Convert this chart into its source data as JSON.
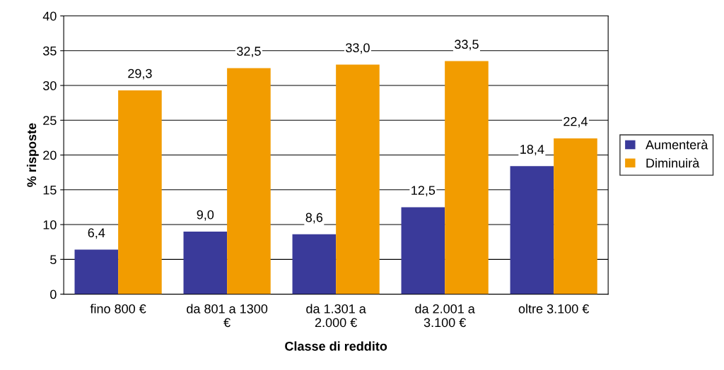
{
  "chart_data": {
    "type": "bar",
    "xlabel": "Classe di reddito",
    "ylabel": "% risposte",
    "categories": [
      "fino 800 €",
      "da 801 a 1300\n€",
      "da 1.301 a\n2.000 €",
      "da 2.001 a\n3.100 €",
      "oltre 3.100 €"
    ],
    "series": [
      {
        "name": "Aumenterà",
        "color": "#3a3a9a",
        "values": [
          6.4,
          9.0,
          8.6,
          12.5,
          18.4
        ],
        "value_labels": [
          "6,4",
          "9,0",
          "8,6",
          "12,5",
          "18,4"
        ]
      },
      {
        "name": "Diminuirà",
        "color": "#f29c00",
        "values": [
          29.3,
          32.5,
          33.0,
          33.5,
          22.4
        ],
        "value_labels": [
          "29,3",
          "32,5",
          "33,0",
          "33,5",
          "22,4"
        ]
      }
    ],
    "ylim": [
      0,
      40
    ],
    "yticks": [
      0,
      5,
      10,
      15,
      20,
      25,
      30,
      35,
      40
    ],
    "grid": "y",
    "legend": "right"
  }
}
